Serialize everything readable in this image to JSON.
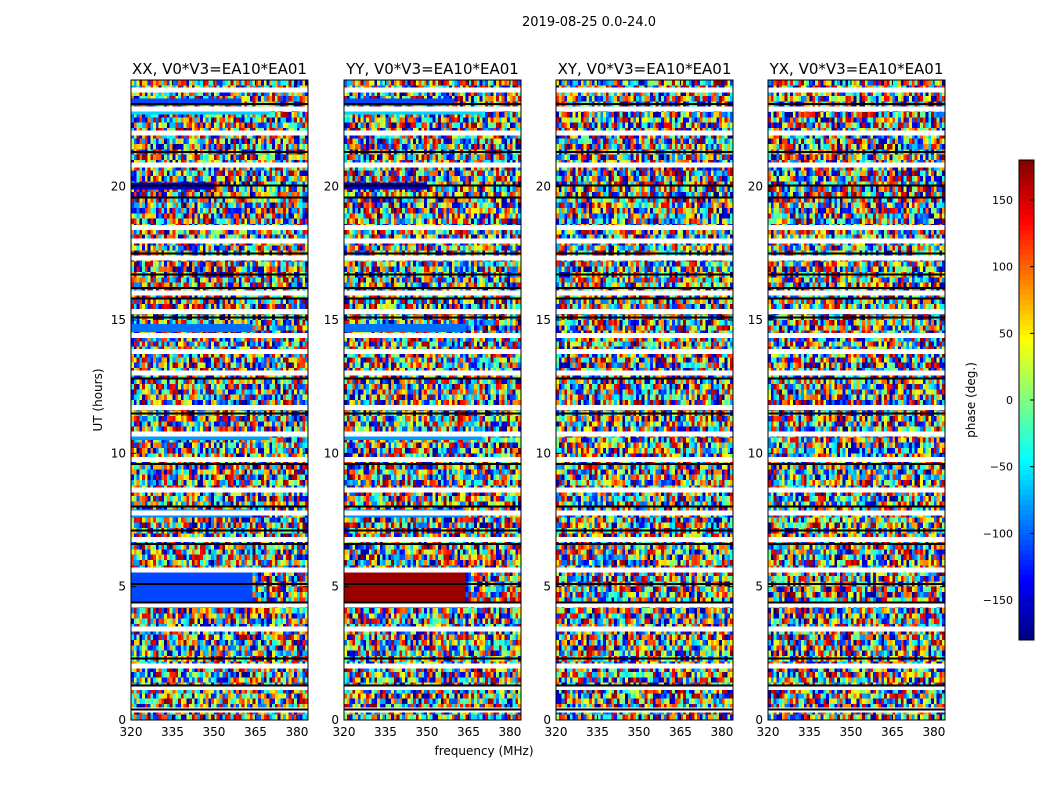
{
  "figure_title": "2019-08-25 0.0-24.0",
  "colors": {
    "jet": [
      "#00007f",
      "#0000ff",
      "#007fff",
      "#00ffff",
      "#7fff7f",
      "#ffff00",
      "#ff7f00",
      "#ff0000",
      "#7f0000"
    ],
    "flag_white": "#ffffff",
    "flag_black": "#000000"
  },
  "chart_data": {
    "type": "heatmap",
    "title": "2019-08-25 0.0-24.0",
    "xlabel": "frequency (MHz)",
    "ylabel": "UT (hours)",
    "xlim": [
      320,
      384
    ],
    "ylim": [
      0,
      24
    ],
    "x_ticks": [
      320,
      335,
      350,
      365,
      380
    ],
    "y_ticks": [
      0,
      5,
      10,
      15,
      20
    ],
    "colorbar": {
      "label": "phase (deg.)",
      "range": [
        -180,
        180
      ],
      "ticks": [
        -150,
        -100,
        -50,
        0,
        50,
        100,
        150
      ],
      "tick_labels": [
        "−150",
        "−100",
        "−50",
        "0",
        "50",
        "100",
        "150"
      ],
      "colormap": "jet"
    },
    "panels": [
      {
        "title": "XX, V0*V3=EA10*EA01",
        "pol": "XX"
      },
      {
        "title": "YY, V0*V3=EA10*EA01",
        "pol": "YY"
      },
      {
        "title": "XY, V0*V3=EA10*EA01",
        "pol": "XY"
      },
      {
        "title": "YX, V0*V3=EA10*EA01",
        "pol": "YX"
      }
    ],
    "flagged_white_hours": [
      0.35,
      1.2,
      2.0,
      3.4,
      4.3,
      5.6,
      6.75,
      7.75,
      8.6,
      9.75,
      10.7,
      11.7,
      13.0,
      13.8,
      14.4,
      15.3,
      16.0,
      17.3,
      17.95,
      18.45,
      20.8,
      22.0,
      22.9,
      23.6
    ],
    "flagged_black_hours": [
      0.4,
      1.3,
      2.3,
      4.4,
      5.1,
      6.6,
      7.1,
      8.0,
      9.6,
      11.5,
      12.8,
      15.1,
      15.8,
      16.2,
      16.7,
      17.5,
      19.6,
      20.05,
      21.3,
      23.1
    ],
    "coherent_bands": [
      {
        "panels": [
          "XX",
          "YY"
        ],
        "t0": 22.7,
        "t1": 23.0,
        "f1": 370,
        "phase": -60
      },
      {
        "panels": [
          "XX",
          "YY"
        ],
        "t0": 23.05,
        "t1": 23.3,
        "f1": 360,
        "phase": -110
      },
      {
        "panels": [
          "XX",
          "YY"
        ],
        "t0": 19.9,
        "t1": 20.15,
        "f1": 350,
        "phase": -150
      },
      {
        "panels": [
          "XX",
          "YY"
        ],
        "t0": 14.55,
        "t1": 14.85,
        "f1": 364,
        "phase": -95
      },
      {
        "panels": [
          "XX",
          "YY"
        ],
        "t0": 10.5,
        "t1": 10.75,
        "f1": 370,
        "phase": -80
      },
      {
        "panels": [
          "XX",
          "YY"
        ],
        "t0": 7.6,
        "t1": 7.9,
        "f1": 364,
        "phase": -85
      },
      {
        "panels": [
          "XX"
        ],
        "t0": 4.2,
        "t1": 5.7,
        "f1": 364,
        "phase": -110
      },
      {
        "panels": [
          "YY"
        ],
        "t0": 4.2,
        "t1": 5.7,
        "f1": 364,
        "phase": 170
      }
    ]
  }
}
